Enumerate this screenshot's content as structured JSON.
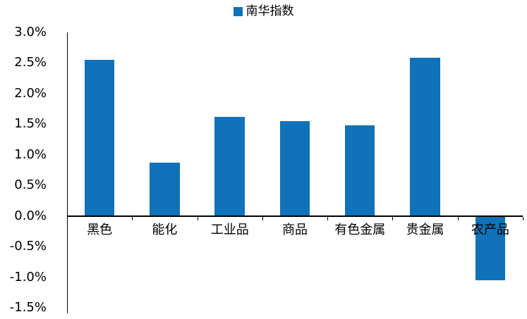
{
  "colors": {
    "bar": "#1072B8",
    "axis": "#000000"
  },
  "legend": {
    "label": "南华指数"
  },
  "chart_data": {
    "type": "bar",
    "title": "",
    "series_name": "南华指数",
    "categories": [
      "黑色",
      "能化",
      "工业品",
      "商品",
      "有色金属",
      "贵金属",
      "农产品"
    ],
    "values": [
      2.55,
      0.87,
      1.62,
      1.55,
      1.48,
      2.58,
      -1.05
    ],
    "value_unit": "%",
    "ylim": [
      -1.5,
      3.0
    ],
    "ytick_values": [
      3.0,
      2.5,
      2.0,
      1.5,
      1.0,
      0.5,
      0.0,
      -0.5,
      -1.0,
      -1.5
    ],
    "yticks": [
      "3.0%",
      "2.5%",
      "2.0%",
      "1.5%",
      "1.0%",
      "0.5%",
      "0.0%",
      "-0.5%",
      "-1.0%",
      "-1.5%"
    ],
    "grid": false,
    "legend_position": "top"
  }
}
